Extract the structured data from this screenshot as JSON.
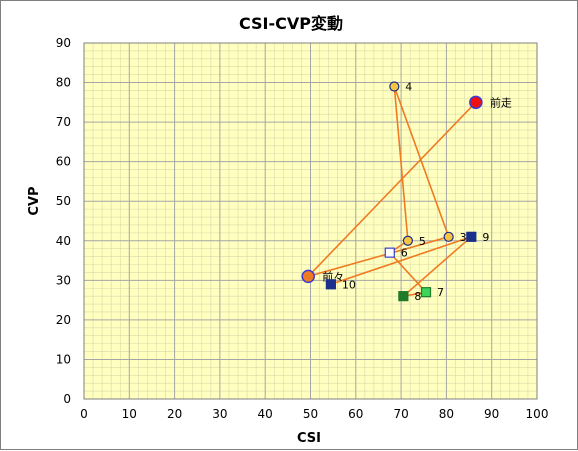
{
  "chart_data": {
    "type": "scatter",
    "title": "CSI-CVP変動",
    "xlabel": "CSI",
    "ylabel": "CVP",
    "xlim": [
      0,
      100
    ],
    "ylim": [
      0,
      90
    ],
    "xticks": [
      0,
      10,
      20,
      30,
      40,
      50,
      60,
      70,
      80,
      90,
      100
    ],
    "yticks": [
      0,
      10,
      20,
      30,
      40,
      50,
      60,
      70,
      80,
      90
    ],
    "grid": true,
    "colors": {
      "plot_bg": "#ffffc0",
      "grid": "#a6a6a6",
      "line": "#f07a22",
      "navy": "#1c2f8c",
      "green_dark": "#1f7a2a",
      "green_light": "#3ed65a",
      "orange": "#f07a22",
      "yellow": "#f5c542",
      "red": "#ee1111",
      "blue": "#3b3bd6"
    },
    "path_order": [
      "前走",
      "前々",
      "3",
      "4",
      "5",
      "6",
      "7",
      "8",
      "9",
      "10"
    ],
    "points": [
      {
        "label": "前走",
        "x": 86.5,
        "y": 75,
        "marker": "circle-large",
        "fill": "red",
        "stroke": "blue"
      },
      {
        "label": "前々",
        "x": 49.5,
        "y": 31,
        "marker": "circle-large",
        "fill": "orange",
        "stroke": "blue"
      },
      {
        "label": "3",
        "x": 80.5,
        "y": 41,
        "marker": "circle",
        "fill": "yellow",
        "stroke": "navy"
      },
      {
        "label": "4",
        "x": 68.5,
        "y": 79,
        "marker": "circle",
        "fill": "yellow",
        "stroke": "navy"
      },
      {
        "label": "5",
        "x": 71.5,
        "y": 40,
        "marker": "circle",
        "fill": "yellow",
        "stroke": "navy"
      },
      {
        "label": "6",
        "x": 67.5,
        "y": 37,
        "marker": "square-open",
        "fill": "white",
        "stroke": "blue"
      },
      {
        "label": "7",
        "x": 75.5,
        "y": 27,
        "marker": "square",
        "fill": "green_light",
        "stroke": "green_dark"
      },
      {
        "label": "8",
        "x": 70.5,
        "y": 26,
        "marker": "square",
        "fill": "green_dark",
        "stroke": "green_dark"
      },
      {
        "label": "9",
        "x": 85.5,
        "y": 41,
        "marker": "square",
        "fill": "navy",
        "stroke": "navy"
      },
      {
        "label": "10",
        "x": 54.5,
        "y": 29,
        "marker": "square",
        "fill": "navy",
        "stroke": "navy"
      }
    ]
  }
}
